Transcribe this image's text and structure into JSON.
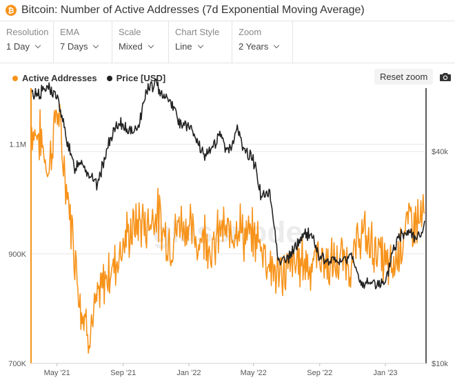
{
  "header": {
    "coin_symbol": "₿",
    "title": "Bitcoin: Number of Active Addresses (7d Exponential Moving Average)"
  },
  "controls": [
    {
      "label": "Resolution",
      "value": "1 Day"
    },
    {
      "label": "EMA",
      "value": "7 Days"
    },
    {
      "label": "Scale",
      "value": "Mixed"
    },
    {
      "label": "Chart Style",
      "value": "Line"
    },
    {
      "label": "Zoom",
      "value": "2 Years"
    }
  ],
  "toolbar": {
    "reset_zoom_label": "Reset zoom",
    "camera_icon": "camera-icon"
  },
  "colors": {
    "active_addresses": "#f7931a",
    "price": "#222222",
    "grid": "#e6e6e6",
    "watermark": "#ececec"
  },
  "watermark": "glassnode",
  "chart_data": {
    "type": "line",
    "title": "Bitcoin: Number of Active Addresses (7d Exponential Moving Average)",
    "x_ticks": [
      "May '21",
      "Sep '21",
      "Jan '22",
      "May '22",
      "Sep '22",
      "Jan '23"
    ],
    "x_range": [
      "2021-03-15",
      "2023-03-15"
    ],
    "y_left": {
      "ticks": [
        "700K",
        "900K",
        "1.1M"
      ],
      "range": [
        700000,
        1200000
      ]
    },
    "y_right": {
      "ticks": [
        "$10k",
        "$40k"
      ],
      "scale": "log",
      "range": [
        10000,
        60000
      ]
    },
    "legend_position": "top-left",
    "series": [
      {
        "name": "Active Addresses",
        "axis": "left",
        "x": [
          "2021-03-15",
          "2021-04-01",
          "2021-04-15",
          "2021-05-01",
          "2021-05-15",
          "2021-06-01",
          "2021-06-15",
          "2021-07-01",
          "2021-07-15",
          "2021-08-01",
          "2021-08-15",
          "2021-09-01",
          "2021-09-15",
          "2021-10-01",
          "2021-10-15",
          "2021-11-01",
          "2021-11-15",
          "2021-12-01",
          "2021-12-15",
          "2022-01-01",
          "2022-01-15",
          "2022-02-01",
          "2022-02-15",
          "2022-03-01",
          "2022-03-15",
          "2022-04-01",
          "2022-04-15",
          "2022-05-01",
          "2022-05-15",
          "2022-06-01",
          "2022-06-15",
          "2022-07-01",
          "2022-07-15",
          "2022-08-01",
          "2022-08-15",
          "2022-09-01",
          "2022-09-15",
          "2022-10-01",
          "2022-10-15",
          "2022-11-01",
          "2022-11-15",
          "2022-12-01",
          "2022-12-15",
          "2023-01-01",
          "2023-01-15",
          "2023-02-01",
          "2023-02-15",
          "2023-03-01",
          "2023-03-15"
        ],
        "values": [
          1130000,
          1110000,
          1050000,
          1170000,
          1050000,
          920000,
          800000,
          760000,
          810000,
          860000,
          880000,
          920000,
          940000,
          960000,
          950000,
          980000,
          940000,
          920000,
          960000,
          950000,
          920000,
          940000,
          900000,
          950000,
          930000,
          960000,
          930000,
          930000,
          920000,
          880000,
          860000,
          870000,
          880000,
          890000,
          880000,
          900000,
          880000,
          880000,
          890000,
          880000,
          940000,
          920000,
          910000,
          880000,
          870000,
          930000,
          960000,
          960000,
          970000
        ]
      },
      {
        "name": "Price [USD]",
        "axis": "right",
        "x": [
          "2021-03-15",
          "2021-04-01",
          "2021-04-15",
          "2021-05-01",
          "2021-05-15",
          "2021-06-01",
          "2021-06-15",
          "2021-07-01",
          "2021-07-15",
          "2021-08-01",
          "2021-08-15",
          "2021-09-01",
          "2021-09-15",
          "2021-10-01",
          "2021-10-15",
          "2021-11-01",
          "2021-11-15",
          "2021-12-01",
          "2021-12-15",
          "2022-01-01",
          "2022-01-15",
          "2022-02-01",
          "2022-02-15",
          "2022-03-01",
          "2022-03-15",
          "2022-04-01",
          "2022-04-15",
          "2022-05-01",
          "2022-05-15",
          "2022-06-01",
          "2022-06-15",
          "2022-07-01",
          "2022-07-15",
          "2022-08-01",
          "2022-08-15",
          "2022-09-01",
          "2022-09-15",
          "2022-10-01",
          "2022-10-15",
          "2022-11-01",
          "2022-11-15",
          "2022-12-01",
          "2022-12-15",
          "2023-01-01",
          "2023-01-15",
          "2023-02-01",
          "2023-02-15",
          "2023-03-01",
          "2023-03-15"
        ],
        "values": [
          58000,
          59000,
          61000,
          57000,
          46000,
          36000,
          38000,
          34000,
          32000,
          40000,
          46000,
          48000,
          45000,
          48000,
          60000,
          62000,
          58000,
          55000,
          48000,
          47000,
          43000,
          38000,
          42000,
          44000,
          40000,
          46000,
          40000,
          38000,
          30000,
          30000,
          20000,
          19500,
          21000,
          23000,
          23500,
          20000,
          19500,
          19500,
          19500,
          20500,
          16500,
          17000,
          17000,
          16500,
          21000,
          23500,
          24000,
          22500,
          24500
        ]
      }
    ]
  }
}
